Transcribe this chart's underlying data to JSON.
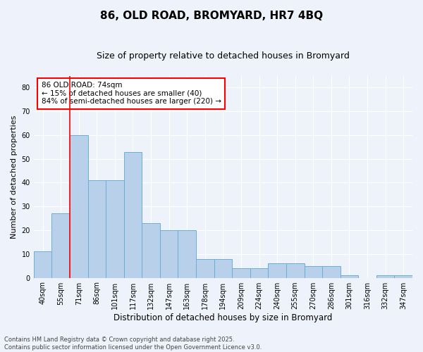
{
  "title": "86, OLD ROAD, BROMYARD, HR7 4BQ",
  "subtitle": "Size of property relative to detached houses in Bromyard",
  "xlabel": "Distribution of detached houses by size in Bromyard",
  "ylabel": "Number of detached properties",
  "categories": [
    "40sqm",
    "55sqm",
    "71sqm",
    "86sqm",
    "101sqm",
    "117sqm",
    "132sqm",
    "147sqm",
    "163sqm",
    "178sqm",
    "194sqm",
    "209sqm",
    "224sqm",
    "240sqm",
    "255sqm",
    "270sqm",
    "286sqm",
    "301sqm",
    "316sqm",
    "332sqm",
    "347sqm"
  ],
  "bar_values": [
    11,
    27,
    60,
    41,
    41,
    53,
    23,
    20,
    20,
    8,
    8,
    4,
    4,
    6,
    6,
    5,
    5,
    1,
    0,
    1,
    1
  ],
  "bar_color": "#b8d0ea",
  "bar_edge_color": "#6aaed6",
  "red_line_x": 2,
  "ylim": [
    0,
    85
  ],
  "yticks": [
    0,
    10,
    20,
    30,
    40,
    50,
    60,
    70,
    80
  ],
  "annotation_text": "86 OLD ROAD: 74sqm\n← 15% of detached houses are smaller (40)\n84% of semi-detached houses are larger (220) →",
  "footer_line1": "Contains HM Land Registry data © Crown copyright and database right 2025.",
  "footer_line2": "Contains public sector information licensed under the Open Government Licence v3.0.",
  "bg_color": "#eef2fb",
  "grid_color": "#ffffff",
  "title_fontsize": 11,
  "subtitle_fontsize": 9,
  "tick_fontsize": 7,
  "ylabel_fontsize": 8,
  "xlabel_fontsize": 8.5,
  "annotation_fontsize": 7.5,
  "footer_fontsize": 6
}
